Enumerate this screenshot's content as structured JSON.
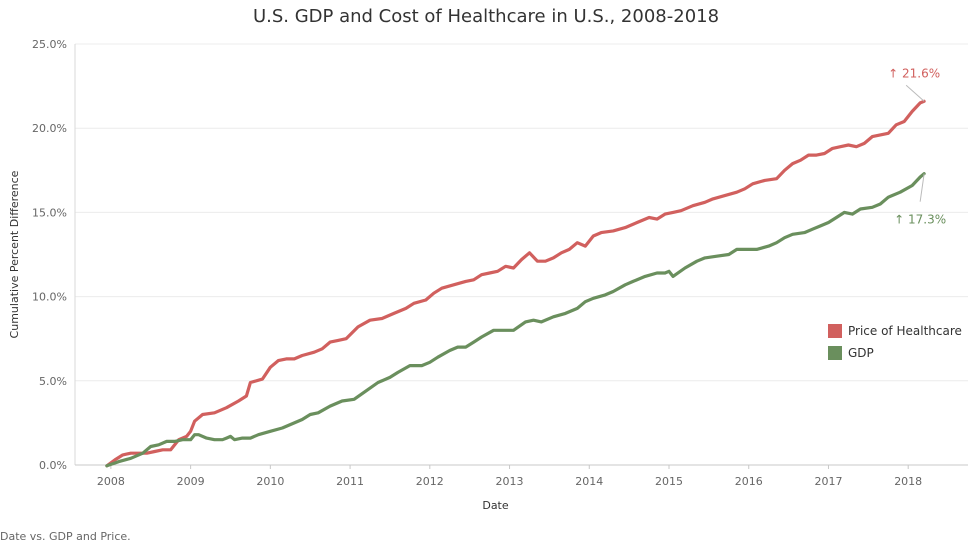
{
  "title": "U.S. GDP and Cost of Healthcare in U.S., 2008-2018",
  "caption": "Date vs. GDP and Price.",
  "colors": {
    "healthcare": "#d1605e",
    "gdp": "#6a8f5d",
    "grid": "#ececec"
  },
  "chart_data": {
    "type": "line",
    "title": "U.S. GDP and Cost of Healthcare in U.S., 2008-2018",
    "xlabel": "Date",
    "ylabel": "Cumulative Percent Difference",
    "xlim": [
      2007.55,
      2018.75
    ],
    "ylim": [
      0,
      25
    ],
    "x_ticks": [
      "2008",
      "2009",
      "2010",
      "2011",
      "2012",
      "2013",
      "2014",
      "2015",
      "2016",
      "2017",
      "2018"
    ],
    "y_ticks": [
      "0.0%",
      "5.0%",
      "10.0%",
      "15.0%",
      "20.0%",
      "25.0%"
    ],
    "legend_position": "right",
    "grid": true,
    "series": [
      {
        "name": "Price of Healthcare",
        "color": "#d1605e",
        "end_label": "↑ 21.6%",
        "points": [
          [
            2007.95,
            -0.2
          ],
          [
            2008.05,
            0.3
          ],
          [
            2008.15,
            0.6
          ],
          [
            2008.25,
            0.7
          ],
          [
            2008.35,
            0.7
          ],
          [
            2008.45,
            0.7
          ],
          [
            2008.55,
            0.8
          ],
          [
            2008.65,
            0.9
          ],
          [
            2008.75,
            0.9
          ],
          [
            2008.85,
            1.5
          ],
          [
            2008.95,
            1.7
          ],
          [
            2009.0,
            2.0
          ],
          [
            2009.05,
            2.6
          ],
          [
            2009.15,
            3.0
          ],
          [
            2009.3,
            3.1
          ],
          [
            2009.45,
            3.4
          ],
          [
            2009.6,
            3.8
          ],
          [
            2009.7,
            4.1
          ],
          [
            2009.75,
            4.9
          ],
          [
            2009.9,
            5.1
          ],
          [
            2010.0,
            5.8
          ],
          [
            2010.1,
            6.2
          ],
          [
            2010.2,
            6.3
          ],
          [
            2010.3,
            6.3
          ],
          [
            2010.4,
            6.5
          ],
          [
            2010.55,
            6.7
          ],
          [
            2010.65,
            6.9
          ],
          [
            2010.75,
            7.3
          ],
          [
            2010.85,
            7.4
          ],
          [
            2010.95,
            7.5
          ],
          [
            2011.1,
            8.2
          ],
          [
            2011.25,
            8.6
          ],
          [
            2011.4,
            8.7
          ],
          [
            2011.55,
            9.0
          ],
          [
            2011.7,
            9.3
          ],
          [
            2011.8,
            9.6
          ],
          [
            2011.95,
            9.8
          ],
          [
            2012.05,
            10.2
          ],
          [
            2012.15,
            10.5
          ],
          [
            2012.3,
            10.7
          ],
          [
            2012.45,
            10.9
          ],
          [
            2012.55,
            11.0
          ],
          [
            2012.65,
            11.3
          ],
          [
            2012.75,
            11.4
          ],
          [
            2012.85,
            11.5
          ],
          [
            2012.95,
            11.8
          ],
          [
            2013.05,
            11.7
          ],
          [
            2013.15,
            12.2
          ],
          [
            2013.25,
            12.6
          ],
          [
            2013.35,
            12.1
          ],
          [
            2013.45,
            12.1
          ],
          [
            2013.55,
            12.3
          ],
          [
            2013.65,
            12.6
          ],
          [
            2013.75,
            12.8
          ],
          [
            2013.85,
            13.2
          ],
          [
            2013.95,
            13.0
          ],
          [
            2014.05,
            13.6
          ],
          [
            2014.15,
            13.8
          ],
          [
            2014.3,
            13.9
          ],
          [
            2014.45,
            14.1
          ],
          [
            2014.6,
            14.4
          ],
          [
            2014.75,
            14.7
          ],
          [
            2014.85,
            14.6
          ],
          [
            2014.95,
            14.9
          ],
          [
            2015.05,
            15.0
          ],
          [
            2015.15,
            15.1
          ],
          [
            2015.3,
            15.4
          ],
          [
            2015.45,
            15.6
          ],
          [
            2015.55,
            15.8
          ],
          [
            2015.7,
            16.0
          ],
          [
            2015.85,
            16.2
          ],
          [
            2015.95,
            16.4
          ],
          [
            2016.05,
            16.7
          ],
          [
            2016.2,
            16.9
          ],
          [
            2016.35,
            17.0
          ],
          [
            2016.45,
            17.5
          ],
          [
            2016.55,
            17.9
          ],
          [
            2016.65,
            18.1
          ],
          [
            2016.75,
            18.4
          ],
          [
            2016.85,
            18.4
          ],
          [
            2016.95,
            18.5
          ],
          [
            2017.05,
            18.8
          ],
          [
            2017.15,
            18.9
          ],
          [
            2017.25,
            19.0
          ],
          [
            2017.35,
            18.9
          ],
          [
            2017.45,
            19.1
          ],
          [
            2017.55,
            19.5
          ],
          [
            2017.65,
            19.6
          ],
          [
            2017.75,
            19.7
          ],
          [
            2017.85,
            20.2
          ],
          [
            2017.95,
            20.4
          ],
          [
            2018.05,
            21.0
          ],
          [
            2018.15,
            21.5
          ],
          [
            2018.2,
            21.6
          ]
        ]
      },
      {
        "name": "GDP",
        "color": "#6a8f5d",
        "end_label": "↑ 17.3%",
        "points": [
          [
            2007.95,
            -0.2
          ],
          [
            2008.1,
            0.2
          ],
          [
            2008.25,
            0.4
          ],
          [
            2008.4,
            0.7
          ],
          [
            2008.5,
            1.1
          ],
          [
            2008.6,
            1.2
          ],
          [
            2008.7,
            1.4
          ],
          [
            2008.8,
            1.4
          ],
          [
            2008.9,
            1.5
          ],
          [
            2009.0,
            1.5
          ],
          [
            2009.05,
            1.8
          ],
          [
            2009.1,
            1.8
          ],
          [
            2009.2,
            1.6
          ],
          [
            2009.3,
            1.5
          ],
          [
            2009.4,
            1.5
          ],
          [
            2009.45,
            1.6
          ],
          [
            2009.5,
            1.7
          ],
          [
            2009.55,
            1.5
          ],
          [
            2009.65,
            1.6
          ],
          [
            2009.75,
            1.6
          ],
          [
            2009.85,
            1.8
          ],
          [
            2010.0,
            2.0
          ],
          [
            2010.15,
            2.2
          ],
          [
            2010.3,
            2.5
          ],
          [
            2010.4,
            2.7
          ],
          [
            2010.5,
            3.0
          ],
          [
            2010.6,
            3.1
          ],
          [
            2010.75,
            3.5
          ],
          [
            2010.9,
            3.8
          ],
          [
            2011.05,
            3.9
          ],
          [
            2011.2,
            4.4
          ],
          [
            2011.35,
            4.9
          ],
          [
            2011.5,
            5.2
          ],
          [
            2011.6,
            5.5
          ],
          [
            2011.75,
            5.9
          ],
          [
            2011.9,
            5.9
          ],
          [
            2012.0,
            6.1
          ],
          [
            2012.1,
            6.4
          ],
          [
            2012.25,
            6.8
          ],
          [
            2012.35,
            7.0
          ],
          [
            2012.45,
            7.0
          ],
          [
            2012.55,
            7.3
          ],
          [
            2012.65,
            7.6
          ],
          [
            2012.8,
            8.0
          ],
          [
            2012.95,
            8.0
          ],
          [
            2013.05,
            8.0
          ],
          [
            2013.2,
            8.5
          ],
          [
            2013.3,
            8.6
          ],
          [
            2013.4,
            8.5
          ],
          [
            2013.55,
            8.8
          ],
          [
            2013.7,
            9.0
          ],
          [
            2013.85,
            9.3
          ],
          [
            2013.95,
            9.7
          ],
          [
            2014.05,
            9.9
          ],
          [
            2014.2,
            10.1
          ],
          [
            2014.3,
            10.3
          ],
          [
            2014.45,
            10.7
          ],
          [
            2014.55,
            10.9
          ],
          [
            2014.7,
            11.2
          ],
          [
            2014.85,
            11.4
          ],
          [
            2014.95,
            11.4
          ],
          [
            2015.0,
            11.5
          ],
          [
            2015.05,
            11.2
          ],
          [
            2015.2,
            11.7
          ],
          [
            2015.35,
            12.1
          ],
          [
            2015.45,
            12.3
          ],
          [
            2015.6,
            12.4
          ],
          [
            2015.75,
            12.5
          ],
          [
            2015.85,
            12.8
          ],
          [
            2015.95,
            12.8
          ],
          [
            2016.1,
            12.8
          ],
          [
            2016.25,
            13.0
          ],
          [
            2016.35,
            13.2
          ],
          [
            2016.45,
            13.5
          ],
          [
            2016.55,
            13.7
          ],
          [
            2016.7,
            13.8
          ],
          [
            2016.8,
            14.0
          ],
          [
            2016.9,
            14.2
          ],
          [
            2017.0,
            14.4
          ],
          [
            2017.1,
            14.7
          ],
          [
            2017.2,
            15.0
          ],
          [
            2017.3,
            14.9
          ],
          [
            2017.4,
            15.2
          ],
          [
            2017.55,
            15.3
          ],
          [
            2017.65,
            15.5
          ],
          [
            2017.75,
            15.9
          ],
          [
            2017.9,
            16.2
          ],
          [
            2018.05,
            16.6
          ],
          [
            2018.15,
            17.1
          ],
          [
            2018.2,
            17.3
          ]
        ]
      }
    ]
  }
}
